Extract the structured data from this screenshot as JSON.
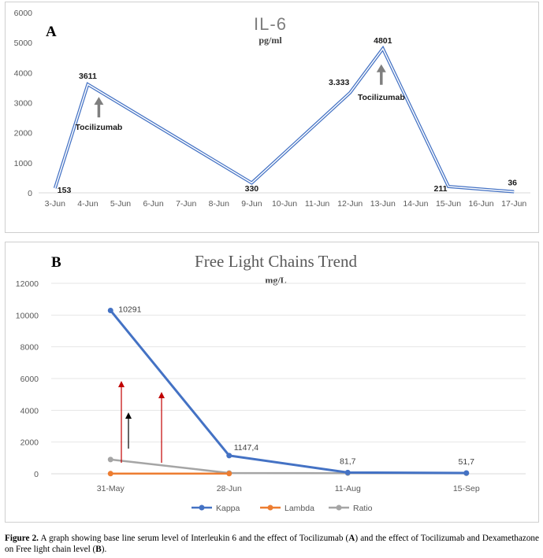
{
  "chart_data": [
    {
      "type": "line",
      "panel_label": "A",
      "title": "IL-6",
      "subtitle": "pg/ml",
      "categories": [
        "3-Jun",
        "4-Jun",
        "5-Jun",
        "6-Jun",
        "7-Jun",
        "8-Jun",
        "9-Jun",
        "10-Jun",
        "11-Jun",
        "12-Jun",
        "13-Jun",
        "14-Jun",
        "15-Jun",
        "16-Jun",
        "17-Jun"
      ],
      "points": [
        {
          "x": "3-Jun",
          "y": 153,
          "label": "153"
        },
        {
          "x": "4-Jun",
          "y": 3611,
          "label": "3611"
        },
        {
          "x": "9-Jun",
          "y": 330,
          "label": "330"
        },
        {
          "x": "12-Jun",
          "y": 3333,
          "label": "3.333"
        },
        {
          "x": "13-Jun",
          "y": 4801,
          "label": "4801"
        },
        {
          "x": "15-Jun",
          "y": 211,
          "label": "211"
        },
        {
          "x": "17-Jun",
          "y": 36,
          "label": "36"
        }
      ],
      "ylim": [
        0,
        6000
      ],
      "yticks": [
        0,
        1000,
        2000,
        3000,
        4000,
        5000,
        6000
      ],
      "grid": false,
      "line_color": "#4472c4",
      "annotations": [
        {
          "text": "Tocilizumab",
          "arrow_at": "4-Jun"
        },
        {
          "text": "Tocilizumab",
          "arrow_at": "13-Jun"
        }
      ]
    },
    {
      "type": "line",
      "panel_label": "B",
      "title": "Free Light Chains Trend",
      "subtitle": "mg/L",
      "categories": [
        "31-May",
        "28-Jun",
        "11-Aug",
        "15-Sep"
      ],
      "series": [
        {
          "name": "Kappa",
          "color": "#4472c4",
          "values": [
            10291,
            1147.4,
            81.7,
            51.7
          ],
          "labels": [
            "10291",
            "1147,4",
            "81,7",
            "51,7"
          ]
        },
        {
          "name": "Lambda",
          "color": "#ed7d31",
          "values": [
            10,
            10,
            null,
            null
          ]
        },
        {
          "name": "Ratio",
          "color": "#a5a5a5",
          "values": [
            900,
            50,
            40,
            30
          ]
        }
      ],
      "ylim": [
        0,
        12000
      ],
      "yticks": [
        0,
        2000,
        4000,
        6000,
        8000,
        10000,
        12000
      ],
      "grid": true,
      "legend": "bottom",
      "annotations": [
        {
          "kind": "arrow",
          "color": "#c00000"
        },
        {
          "kind": "arrow",
          "color": "#000000"
        },
        {
          "kind": "arrow",
          "color": "#c00000"
        }
      ]
    }
  ],
  "caption": {
    "prefix": "Figure 2.",
    "text1": " A graph showing base line serum level of Interleukin 6 and the effect of Tocilizumab (",
    "a": "A",
    "text2": ") and the effect of Tocilizumab and Dexamethazone on Free light chain level (",
    "b": "B",
    "text3": ")."
  }
}
